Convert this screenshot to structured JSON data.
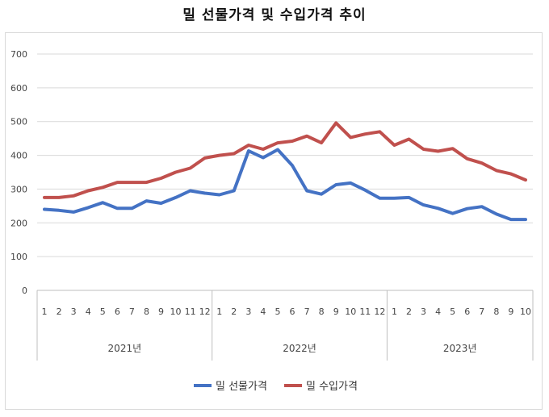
{
  "title": "밀 선물가격 및 수입가격 추이",
  "chart_data": {
    "type": "line",
    "ylim": [
      0,
      700
    ],
    "yticks": [
      "0",
      "100",
      "200",
      "300",
      "400",
      "500",
      "600",
      "700"
    ],
    "grid": true,
    "legend_position": "bottom",
    "x_month_labels": [
      "1",
      "2",
      "3",
      "4",
      "5",
      "6",
      "7",
      "8",
      "9",
      "10",
      "11",
      "12",
      "1",
      "2",
      "3",
      "4",
      "5",
      "6",
      "7",
      "8",
      "9",
      "10",
      "11",
      "12",
      "1",
      "2",
      "3",
      "4",
      "5",
      "6",
      "7",
      "8",
      "9",
      "10"
    ],
    "year_groups": [
      {
        "label": "2021년",
        "count": 12
      },
      {
        "label": "2022년",
        "count": 12
      },
      {
        "label": "2023년",
        "count": 10
      }
    ],
    "series": [
      {
        "name": "밀 선물가격",
        "color": "#4472c4",
        "values": [
          240,
          237,
          232,
          245,
          260,
          243,
          243,
          265,
          258,
          275,
          295,
          288,
          283,
          295,
          413,
          393,
          417,
          370,
          295,
          285,
          313,
          318,
          297,
          273,
          273,
          275,
          253,
          243,
          228,
          242,
          248,
          226,
          210,
          210
        ]
      },
      {
        "name": "밀 수입가격",
        "color": "#c0504d",
        "values": [
          275,
          275,
          280,
          295,
          305,
          320,
          320,
          320,
          332,
          350,
          362,
          392,
          400,
          405,
          430,
          418,
          437,
          442,
          457,
          437,
          496,
          453,
          463,
          470,
          430,
          448,
          418,
          412,
          420,
          390,
          377,
          355,
          345,
          327
        ]
      }
    ]
  }
}
